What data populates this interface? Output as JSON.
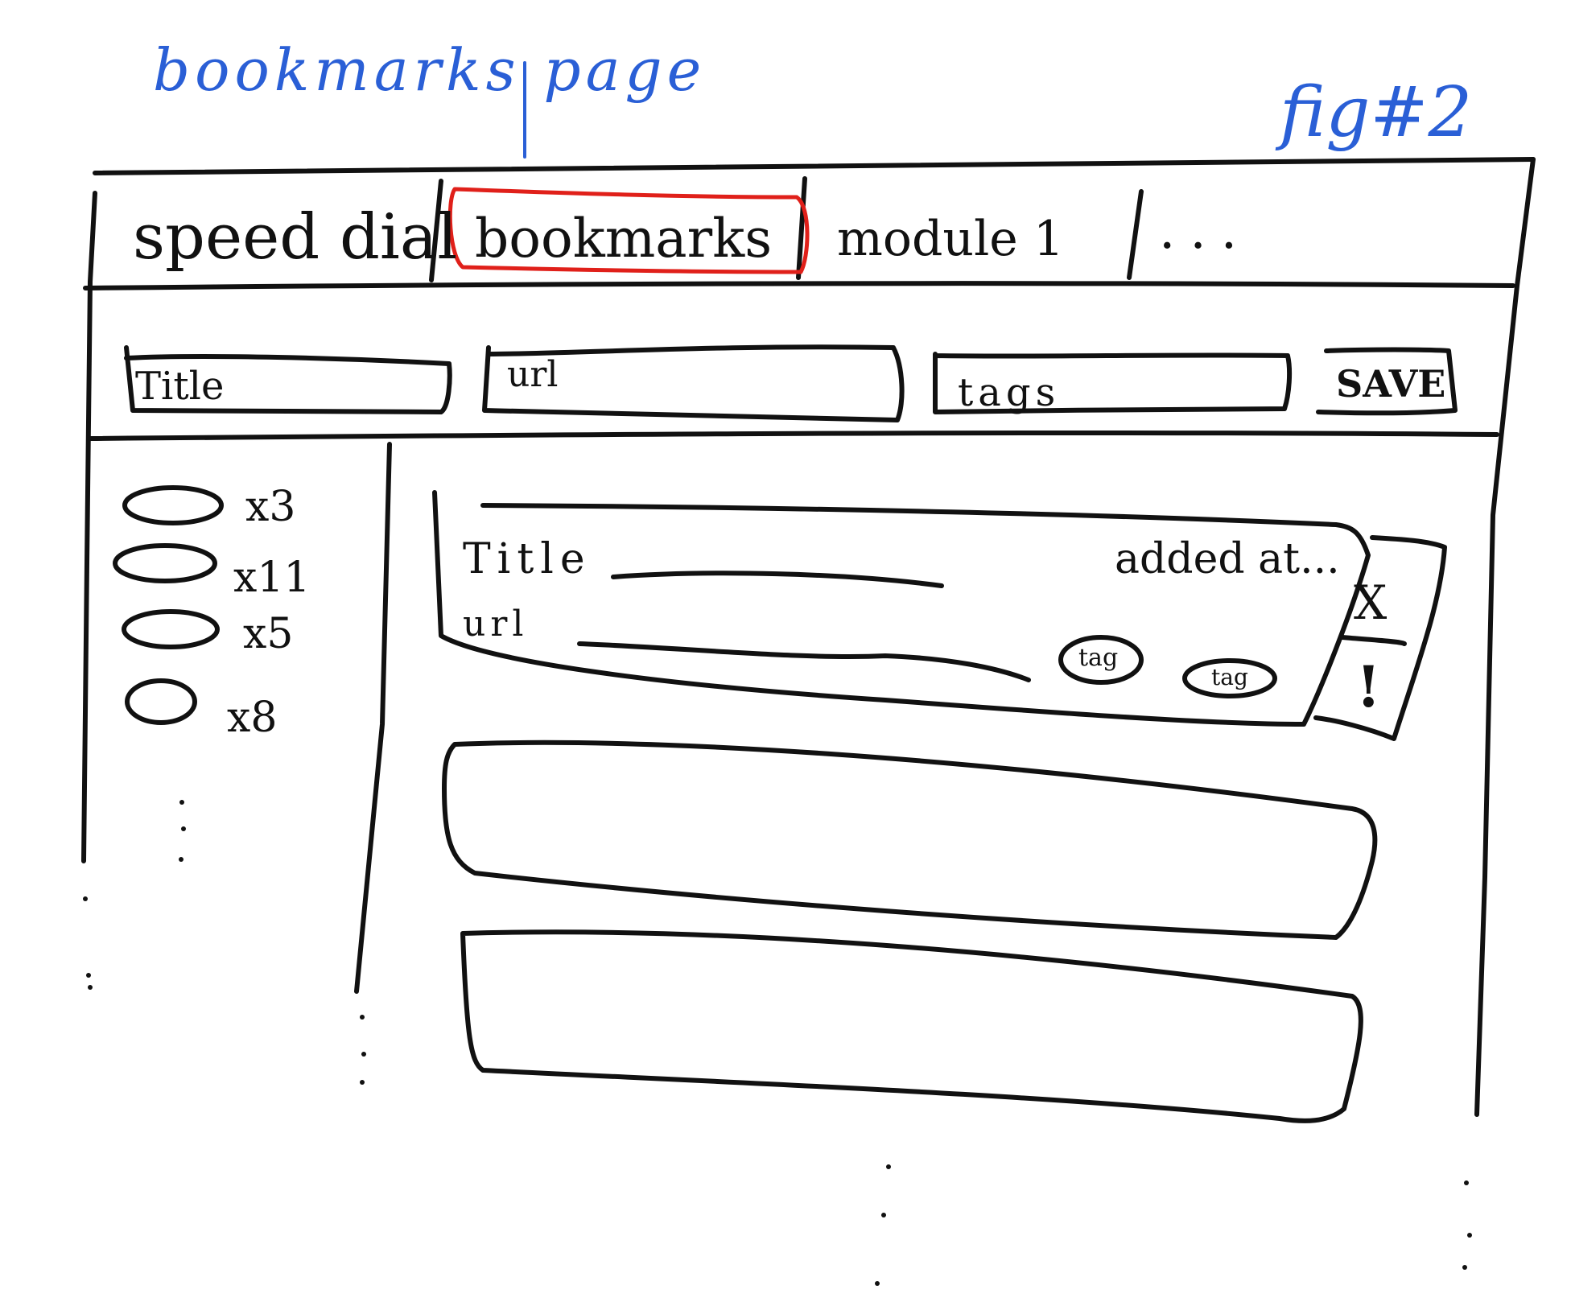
{
  "annotations": {
    "page_label": "bookmarks page",
    "figure_label": "fig#2"
  },
  "tabs": [
    {
      "label": "speed dial"
    },
    {
      "label": "bookmarks",
      "highlighted": true
    },
    {
      "label": "module 1"
    },
    {
      "label": "..."
    }
  ],
  "form": {
    "title_placeholder": "Title",
    "url_placeholder": "url",
    "tags_placeholder": "tags",
    "save_label": "SAVE"
  },
  "tag_list": [
    {
      "count": "x3"
    },
    {
      "count": "x11"
    },
    {
      "count": "x5"
    },
    {
      "count": "x8"
    }
  ],
  "bookmark": {
    "title_label": "Title",
    "url_label": "url",
    "added_at": "added at...",
    "tags": [
      "tag",
      "tag"
    ],
    "delete_glyph": "X",
    "alert_glyph": "!"
  },
  "colors": {
    "annotation": "#2a5fd6",
    "highlight": "#e0201a",
    "ink": "#111111"
  }
}
